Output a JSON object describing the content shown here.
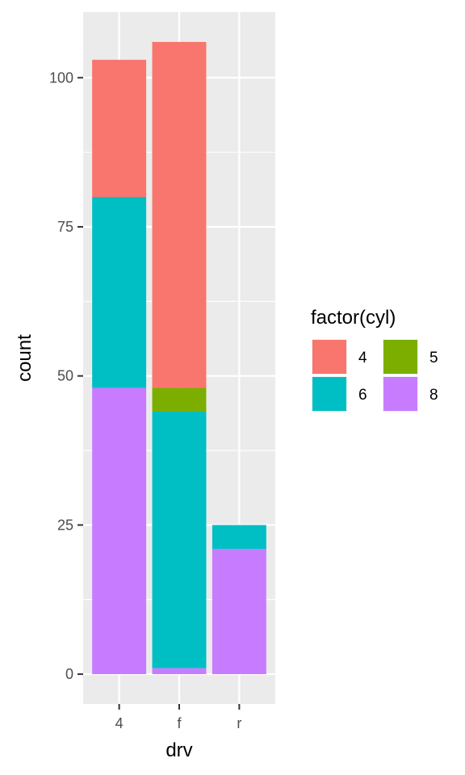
{
  "chart_data": {
    "type": "bar",
    "stacked": true,
    "categories": [
      "4",
      "f",
      "r"
    ],
    "xlabel": "drv",
    "ylabel": "count",
    "ylim": [
      -5,
      111
    ],
    "yticks": [
      0,
      25,
      50,
      75,
      100
    ],
    "grid": true,
    "legend": {
      "title": "factor(cyl)",
      "position": "right",
      "entries": [
        "4",
        "5",
        "6",
        "8"
      ]
    },
    "series": [
      {
        "name": "4",
        "color": "#F8766D",
        "values": [
          23,
          58,
          0
        ]
      },
      {
        "name": "5",
        "color": "#7CAE00",
        "values": [
          0,
          4,
          0
        ]
      },
      {
        "name": "6",
        "color": "#00BFC4",
        "values": [
          32,
          43,
          4
        ]
      },
      {
        "name": "8",
        "color": "#C77CFF",
        "values": [
          48,
          1,
          21
        ]
      }
    ]
  }
}
